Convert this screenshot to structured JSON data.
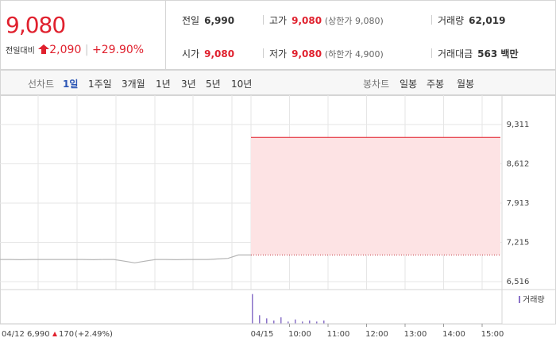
{
  "quote": {
    "price": "9,080",
    "change_label": "전일대비",
    "change": "2,090",
    "rate": "+29.90%"
  },
  "stats": [
    [
      {
        "label": "전일",
        "value": "6,990"
      },
      {
        "label": "고가",
        "value": "9,080",
        "note": "(상한가 9,080)"
      },
      {
        "label": "거래량",
        "value": "62,019"
      }
    ],
    [
      {
        "label": "시가",
        "value": "9,080"
      },
      {
        "label": "저가",
        "value": "9,080",
        "note": "(하한가 4,900)"
      },
      {
        "label": "거래대금",
        "value": "563 백만"
      }
    ]
  ],
  "tabs": {
    "line_label": "선차트",
    "line": [
      "1일",
      "1주일",
      "3개월",
      "1년",
      "3년",
      "5년",
      "10년"
    ],
    "selected": 0,
    "candle_label": "봉차트",
    "candle": [
      "일봉",
      "주봉",
      "월봉"
    ]
  },
  "chart": {
    "ylim": [
      6375,
      9833
    ],
    "yticks": [
      {
        "value": 9311,
        "label": "9,311"
      },
      {
        "value": 8612,
        "label": "8,612"
      },
      {
        "value": 7913,
        "label": "7,913"
      },
      {
        "value": 7215,
        "label": "7,215"
      },
      {
        "value": 6516,
        "label": "6,516"
      }
    ],
    "prev_day": {
      "label": "04/12",
      "close": "6,990",
      "change": "170",
      "rate": "(+2.49%)",
      "values": [
        6910,
        6910,
        6905,
        6910,
        6910,
        6910,
        6910,
        6910,
        6910,
        6905,
        6910,
        6910,
        6880,
        6850,
        6880,
        6910,
        6910,
        6905,
        6910,
        6910,
        6910,
        6920,
        6930,
        6990
      ]
    },
    "today": {
      "label": "04/15",
      "values": [
        9080,
        9080
      ]
    },
    "prev_close": 6990,
    "x_labels": [
      "10:00",
      "11:00",
      "12:00",
      "13:00",
      "14:00",
      "15:00"
    ],
    "volume_label": "거래량",
    "volume_ylim": [
      0,
      30
    ],
    "volume": [
      28,
      8,
      5,
      3,
      6,
      2,
      4,
      2,
      3,
      2,
      3
    ]
  }
}
